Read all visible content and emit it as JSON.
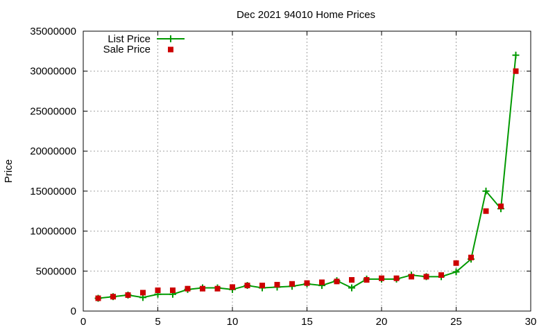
{
  "chart_data": {
    "type": "line",
    "title": "Dec 2021 94010 Home Prices",
    "xlabel": "",
    "ylabel": "Price",
    "xlim": [
      0,
      30
    ],
    "ylim": [
      0,
      35000000
    ],
    "x_ticks": [
      "0",
      "5",
      "10",
      "15",
      "20",
      "25",
      "30"
    ],
    "y_ticks": [
      "0",
      "5000000",
      "10000000",
      "15000000",
      "20000000",
      "25000000",
      "30000000",
      "35000000"
    ],
    "grid": true,
    "legend_position": "top-left",
    "series": [
      {
        "name": "List Price",
        "style": "line+cross",
        "color": "#009900",
        "x": [
          1,
          2,
          3,
          4,
          5,
          6,
          7,
          8,
          9,
          10,
          11,
          12,
          13,
          14,
          15,
          16,
          17,
          18,
          19,
          20,
          21,
          22,
          23,
          24,
          25,
          26,
          27,
          28,
          29
        ],
        "values": [
          1600000,
          1800000,
          2000000,
          1700000,
          2100000,
          2100000,
          2700000,
          2900000,
          2900000,
          2700000,
          3200000,
          2900000,
          3000000,
          3100000,
          3400000,
          3200000,
          3800000,
          2900000,
          4000000,
          4000000,
          4000000,
          4500000,
          4300000,
          4300000,
          4900000,
          6500000,
          15000000,
          12800000,
          32000000
        ]
      },
      {
        "name": "Sale Price",
        "style": "square",
        "color": "#cc0000",
        "x": [
          1,
          2,
          3,
          4,
          5,
          6,
          7,
          8,
          9,
          10,
          11,
          12,
          13,
          14,
          15,
          16,
          17,
          18,
          19,
          20,
          21,
          22,
          23,
          24,
          25,
          26,
          27,
          28,
          29
        ],
        "values": [
          1600000,
          1800000,
          2000000,
          2300000,
          2600000,
          2600000,
          2800000,
          2800000,
          2800000,
          3000000,
          3200000,
          3200000,
          3300000,
          3400000,
          3500000,
          3600000,
          3700000,
          3900000,
          3900000,
          4100000,
          4100000,
          4300000,
          4300000,
          4500000,
          6000000,
          6700000,
          12500000,
          13100000,
          30000000
        ]
      }
    ]
  }
}
